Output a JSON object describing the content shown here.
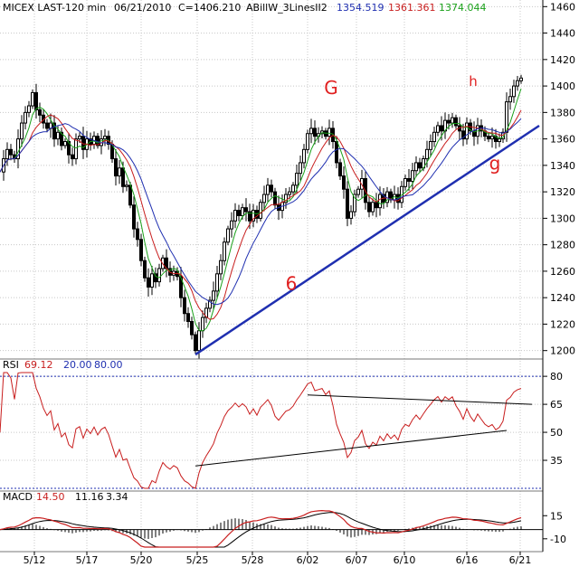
{
  "chart_data": {
    "type": "candlestick",
    "header": {
      "symbol": "MICEX LAST-120 min",
      "date": "06/21/2010",
      "close_label": "C=1406.210",
      "study": "ABillW_3LinesII2",
      "ma_values": [
        {
          "text": "1354.519",
          "color": "#1f2fb0"
        },
        {
          "text": "1361.361",
          "color": "#c81e1e"
        },
        {
          "text": "1374.044",
          "color": "#1aa01a"
        }
      ]
    },
    "price_axis": {
      "min": 1195,
      "max": 1465,
      "ticks": [
        "1460",
        "1440",
        "1420",
        "1400",
        "1380",
        "1360",
        "1340",
        "1320",
        "1300",
        "1280",
        "1260",
        "1240",
        "1220",
        "1200"
      ]
    },
    "x_labels": [
      "5/12",
      "5/17",
      "5/20",
      "5/25",
      "5/28",
      "6/02",
      "6/07",
      "6/10",
      "6/16",
      "6/21"
    ],
    "price_points": [
      [
        0,
        1335
      ],
      [
        4,
        1345
      ],
      [
        8,
        1352
      ],
      [
        12,
        1348
      ],
      [
        16,
        1345
      ],
      [
        20,
        1360
      ],
      [
        24,
        1372
      ],
      [
        28,
        1380
      ],
      [
        32,
        1385
      ],
      [
        36,
        1395
      ],
      [
        40,
        1382
      ],
      [
        44,
        1378
      ],
      [
        48,
        1372
      ],
      [
        52,
        1368
      ],
      [
        56,
        1372
      ],
      [
        60,
        1360
      ],
      [
        64,
        1365
      ],
      [
        68,
        1355
      ],
      [
        72,
        1358
      ],
      [
        76,
        1348
      ],
      [
        80,
        1345
      ],
      [
        84,
        1360
      ],
      [
        88,
        1362
      ],
      [
        92,
        1352
      ],
      [
        96,
        1360
      ],
      [
        100,
        1356
      ],
      [
        104,
        1362
      ],
      [
        108,
        1355
      ],
      [
        112,
        1360
      ],
      [
        116,
        1362
      ],
      [
        120,
        1356
      ],
      [
        124,
        1345
      ],
      [
        128,
        1332
      ],
      [
        132,
        1338
      ],
      [
        136,
        1324
      ],
      [
        140,
        1325
      ],
      [
        144,
        1310
      ],
      [
        148,
        1292
      ],
      [
        152,
        1284
      ],
      [
        156,
        1268
      ],
      [
        160,
        1255
      ],
      [
        164,
        1248
      ],
      [
        168,
        1258
      ],
      [
        172,
        1252
      ],
      [
        176,
        1262
      ],
      [
        180,
        1270
      ],
      [
        184,
        1262
      ],
      [
        188,
        1257
      ],
      [
        192,
        1260
      ],
      [
        196,
        1256
      ],
      [
        200,
        1240
      ],
      [
        204,
        1228
      ],
      [
        208,
        1222
      ],
      [
        212,
        1212
      ],
      [
        216,
        1200
      ],
      [
        220,
        1215
      ],
      [
        224,
        1225
      ],
      [
        228,
        1232
      ],
      [
        232,
        1238
      ],
      [
        236,
        1245
      ],
      [
        240,
        1258
      ],
      [
        244,
        1268
      ],
      [
        248,
        1282
      ],
      [
        252,
        1292
      ],
      [
        256,
        1298
      ],
      [
        260,
        1306
      ],
      [
        264,
        1302
      ],
      [
        268,
        1308
      ],
      [
        272,
        1305
      ],
      [
        276,
        1298
      ],
      [
        280,
        1306
      ],
      [
        284,
        1300
      ],
      [
        288,
        1312
      ],
      [
        292,
        1318
      ],
      [
        296,
        1325
      ],
      [
        300,
        1320
      ],
      [
        304,
        1310
      ],
      [
        308,
        1306
      ],
      [
        312,
        1312
      ],
      [
        316,
        1318
      ],
      [
        320,
        1320
      ],
      [
        324,
        1325
      ],
      [
        328,
        1334
      ],
      [
        332,
        1342
      ],
      [
        336,
        1352
      ],
      [
        340,
        1364
      ],
      [
        344,
        1368
      ],
      [
        348,
        1362
      ],
      [
        352,
        1364
      ],
      [
        356,
        1366
      ],
      [
        360,
        1362
      ],
      [
        364,
        1368
      ],
      [
        368,
        1358
      ],
      [
        372,
        1342
      ],
      [
        376,
        1332
      ],
      [
        380,
        1322
      ],
      [
        384,
        1300
      ],
      [
        388,
        1305
      ],
      [
        392,
        1318
      ],
      [
        396,
        1322
      ],
      [
        400,
        1330
      ],
      [
        404,
        1312
      ],
      [
        408,
        1305
      ],
      [
        412,
        1312
      ],
      [
        416,
        1308
      ],
      [
        420,
        1318
      ],
      [
        424,
        1312
      ],
      [
        428,
        1320
      ],
      [
        432,
        1314
      ],
      [
        436,
        1318
      ],
      [
        440,
        1312
      ],
      [
        444,
        1324
      ],
      [
        448,
        1330
      ],
      [
        452,
        1328
      ],
      [
        456,
        1336
      ],
      [
        460,
        1342
      ],
      [
        464,
        1338
      ],
      [
        468,
        1345
      ],
      [
        472,
        1352
      ],
      [
        476,
        1358
      ],
      [
        480,
        1365
      ],
      [
        484,
        1370
      ],
      [
        488,
        1366
      ],
      [
        492,
        1374
      ],
      [
        496,
        1372
      ],
      [
        500,
        1376
      ],
      [
        504,
        1370
      ],
      [
        508,
        1366
      ],
      [
        512,
        1360
      ],
      [
        516,
        1372
      ],
      [
        520,
        1366
      ],
      [
        524,
        1362
      ],
      [
        528,
        1370
      ],
      [
        532,
        1366
      ],
      [
        536,
        1362
      ],
      [
        540,
        1360
      ],
      [
        544,
        1362
      ],
      [
        548,
        1358
      ],
      [
        552,
        1360
      ],
      [
        556,
        1365
      ],
      [
        560,
        1388
      ],
      [
        564,
        1392
      ],
      [
        568,
        1400
      ],
      [
        572,
        1404
      ],
      [
        576,
        1406
      ]
    ],
    "moving_averages": [
      {
        "name": "green",
        "color": "#1aa01a",
        "period": 5
      },
      {
        "name": "red",
        "color": "#c81e1e",
        "period": 9
      },
      {
        "name": "blue",
        "color": "#1f2fb0",
        "period": 14
      }
    ],
    "trendline": {
      "from": [
        216,
        1197
      ],
      "to": [
        596,
        1370
      ],
      "color": "#1f2fb0"
    },
    "annotations": [
      {
        "text": "G",
        "x": 366,
        "price": 1394,
        "color": "#e02020",
        "size": 20
      },
      {
        "text": "h",
        "x": 523,
        "price": 1400,
        "color": "#e02020",
        "size": 15
      },
      {
        "text": "g",
        "x": 547,
        "price": 1337,
        "color": "#e02020",
        "size": 20
      },
      {
        "text": "6",
        "x": 322,
        "price": 1246,
        "color": "#e02020",
        "size": 20
      }
    ],
    "rsi": {
      "label": "RSI",
      "value": "69.12",
      "levels_label_low": "20.00",
      "levels_label_high": "80.00",
      "range": [
        20,
        82
      ],
      "ticks": [
        "80",
        "65",
        "50",
        "35"
      ],
      "dotted_levels": [
        80,
        20
      ],
      "trendlines": [
        {
          "from": [
            216,
            32
          ],
          "to": [
            560,
            51
          ]
        },
        {
          "from": [
            340,
            70
          ],
          "to": [
            588,
            65
          ]
        }
      ]
    },
    "macd": {
      "label": "MACD",
      "values": [
        "14.50",
        "11.16",
        "3.34"
      ],
      "range": [
        -19,
        27
      ],
      "ticks": [
        "15",
        "-10"
      ]
    }
  }
}
